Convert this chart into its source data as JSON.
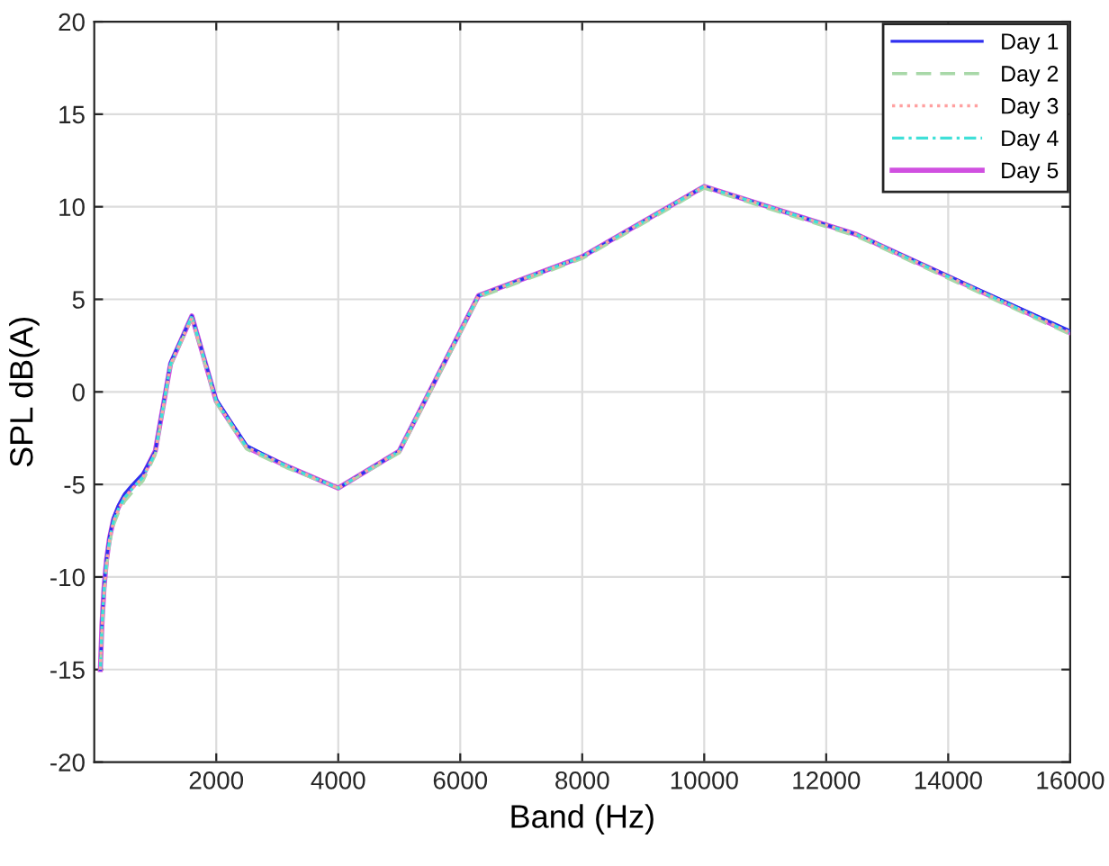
{
  "chart_data": {
    "type": "line",
    "xlabel": "Band (Hz)",
    "ylabel": "SPL dB(A)",
    "xlim": [
      0,
      16000
    ],
    "ylim": [
      -20,
      20
    ],
    "xticks": [
      2000,
      4000,
      6000,
      8000,
      10000,
      12000,
      14000,
      16000
    ],
    "yticks": [
      -20,
      -15,
      -10,
      -5,
      0,
      5,
      10,
      15,
      20
    ],
    "grid": true,
    "legend": "top right",
    "series": [
      {
        "name": "Day 1",
        "color": "#3030f0",
        "line_style": "solid",
        "x": [
          100,
          125,
          160,
          200,
          250,
          315,
          400,
          500,
          630,
          800,
          1000,
          1250,
          1600,
          2000,
          2500,
          3150,
          4000,
          5000,
          6300,
          8000,
          10000,
          12500,
          16000
        ],
        "values": [
          -15,
          -12.5,
          -10.5,
          -9,
          -7.8,
          -6.8,
          -6.1,
          -5.5,
          -5,
          -4.4,
          -3.2,
          1.6,
          4.1,
          -0.4,
          -2.9,
          -4,
          -5.2,
          -3.2,
          5.2,
          7.3,
          11.1,
          8.5,
          3.3
        ]
      },
      {
        "name": "Day 2",
        "color": "#a8d8a8",
        "line_style": "dashed",
        "x": [
          100,
          125,
          160,
          200,
          250,
          315,
          400,
          500,
          630,
          800,
          1000,
          1250,
          1600,
          2000,
          2500,
          3150,
          4000,
          5000,
          6300,
          8000,
          10000,
          12500,
          16000
        ],
        "values": [
          -15,
          -13,
          -11,
          -9.5,
          -8.2,
          -7.2,
          -6.5,
          -5.9,
          -5.4,
          -4.8,
          -3.4,
          1.4,
          4,
          -0.6,
          -3.1,
          -4.1,
          -5.2,
          -3.3,
          5.1,
          7.2,
          11,
          8.4,
          3.1
        ]
      },
      {
        "name": "Day 3",
        "color": "#ffa0a0",
        "line_style": "dotted",
        "x": [
          100,
          125,
          160,
          200,
          250,
          315,
          400,
          500,
          630,
          800,
          1000,
          1250,
          1600,
          2000,
          2500,
          3150,
          4000,
          5000,
          6300,
          8000,
          10000,
          12500,
          16000
        ],
        "values": [
          -15,
          -12.8,
          -10.8,
          -9.3,
          -8,
          -7,
          -6.3,
          -5.7,
          -5.2,
          -4.6,
          -3.3,
          1.5,
          4,
          -0.5,
          -3,
          -4,
          -5.2,
          -3.2,
          5.2,
          7.3,
          11.1,
          8.5,
          3.2
        ]
      },
      {
        "name": "Day 4",
        "color": "#40e0d8",
        "line_style": "dashdot",
        "x": [
          100,
          125,
          160,
          200,
          250,
          315,
          400,
          500,
          630,
          800,
          1000,
          1250,
          1600,
          2000,
          2500,
          3150,
          4000,
          5000,
          6300,
          8000,
          10000,
          12500,
          16000
        ],
        "values": [
          -15,
          -12.7,
          -10.7,
          -9.2,
          -8,
          -7,
          -6.3,
          -5.7,
          -5.2,
          -4.6,
          -3.3,
          1.5,
          4.1,
          -0.5,
          -3,
          -4,
          -5.2,
          -3.2,
          5.2,
          7.3,
          11.1,
          8.5,
          3.2
        ]
      },
      {
        "name": "Day 5",
        "color": "#d050e0",
        "line_style": "solid",
        "x": [
          100,
          125,
          160,
          200,
          250,
          315,
          400,
          500,
          630,
          800,
          1000,
          1250,
          1600,
          2000,
          2500,
          3150,
          4000,
          5000,
          6300,
          8000,
          10000,
          12500,
          16000
        ],
        "values": [
          -15,
          -12.6,
          -10.6,
          -9.1,
          -7.9,
          -6.9,
          -6.2,
          -5.6,
          -5.1,
          -4.5,
          -3.2,
          1.5,
          4.1,
          -0.5,
          -3,
          -4,
          -5.2,
          -3.2,
          5.2,
          7.3,
          11.1,
          8.5,
          3.2
        ]
      }
    ]
  }
}
